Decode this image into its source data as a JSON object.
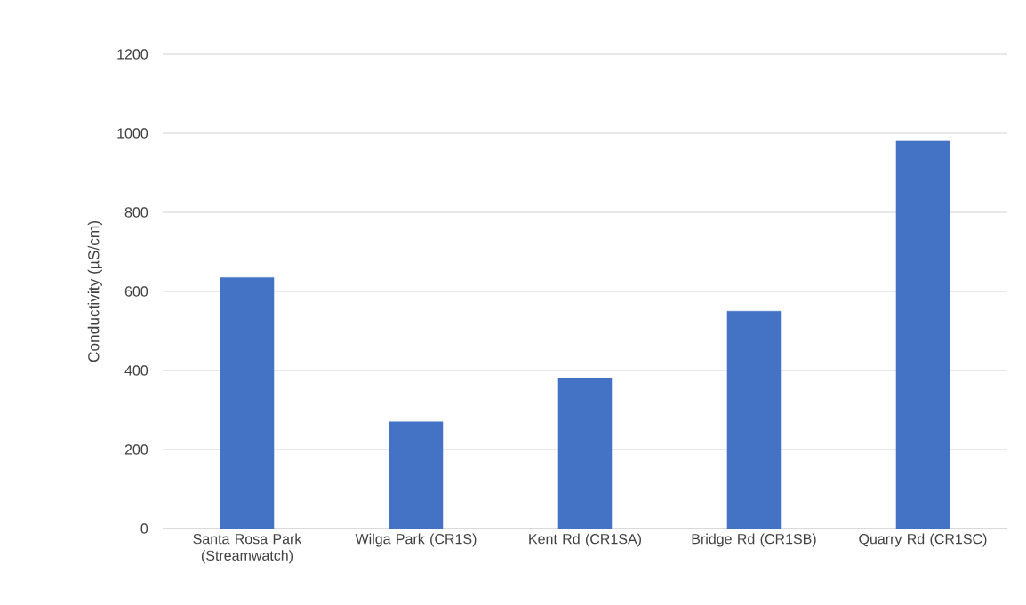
{
  "chart_data": {
    "type": "bar",
    "ylabel": "Conductivity (µS/cm)",
    "categories": [
      "Santa Rosa Park (Streamwatch)",
      "Wilga Park (CR1S)",
      "Kent Rd (CR1SA)",
      "Bridge Rd (CR1SB)",
      "Quarry Rd (CR1SC)"
    ],
    "values": [
      635,
      270,
      380,
      550,
      980
    ],
    "color": "#4472c4",
    "ylim": [
      0,
      1200
    ],
    "yticks": [
      0,
      200,
      400,
      600,
      800,
      1000,
      1200
    ],
    "grid": "y"
  }
}
